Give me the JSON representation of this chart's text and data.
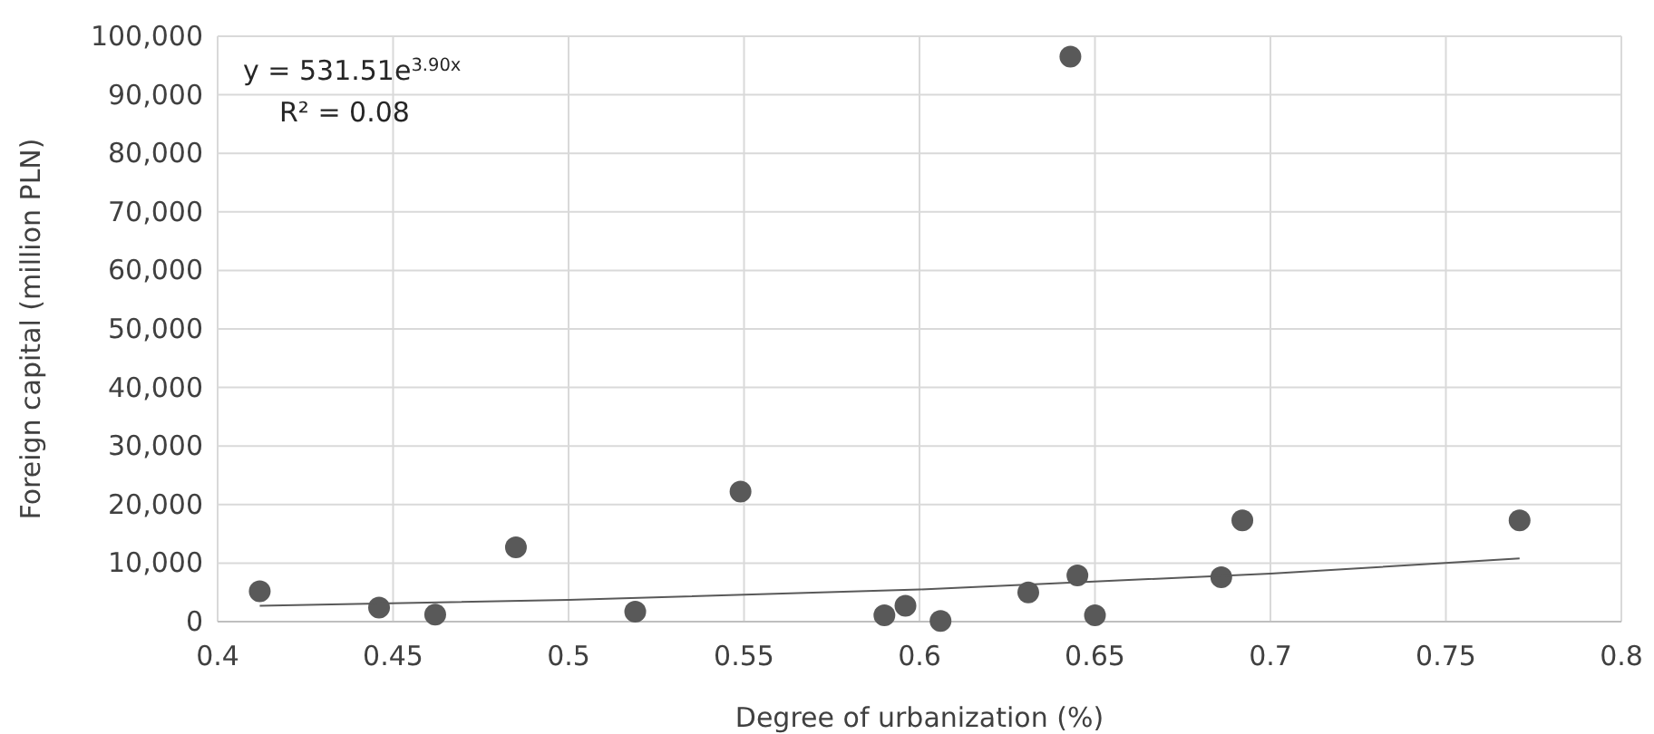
{
  "chart_data": {
    "type": "scatter",
    "xlabel": "Degree of urbanization (%)",
    "ylabel": "Foreign capital (million PLN)",
    "xlim": [
      0.4,
      0.8
    ],
    "xticks": [
      0.4,
      0.45,
      0.5,
      0.55,
      0.6,
      0.65,
      0.7,
      0.75,
      0.8
    ],
    "ylim": [
      0,
      100000
    ],
    "yticks": [
      {
        "value": 0,
        "label": "0"
      },
      {
        "value": 10000,
        "label": "10,000"
      },
      {
        "value": 20000,
        "label": "20,000"
      },
      {
        "value": 30000,
        "label": "30,000"
      },
      {
        "value": 40000,
        "label": "40,000"
      },
      {
        "value": 50000,
        "label": "50,000"
      },
      {
        "value": 60000,
        "label": "60,000"
      },
      {
        "value": 70000,
        "label": "70,000"
      },
      {
        "value": 80000,
        "label": "80,000"
      },
      {
        "value": 90000,
        "label": "90,000"
      },
      {
        "value": 100000,
        "label": "100,000"
      }
    ],
    "grid": true,
    "annotations": [
      "y = 531.51e$^{3.90x}$",
      "R² = 0.08"
    ],
    "series": [
      {
        "color": "#595959",
        "marker": "circle",
        "x": [
          0.412,
          0.446,
          0.462,
          0.485,
          0.519,
          0.549,
          0.59,
          0.596,
          0.606,
          0.631,
          0.643,
          0.645,
          0.65,
          0.686,
          0.692,
          0.771
        ],
        "values": [
          5200,
          2400,
          1200,
          12700,
          1700,
          22200,
          1100,
          2700,
          100,
          5000,
          96500,
          7900,
          1100,
          7600,
          17300,
          17300
        ]
      },
      {
        "type": "line",
        "color": "#595959",
        "line_style": "solid",
        "marker": "none",
        "x": [
          0.412,
          0.5,
          0.6,
          0.7,
          0.771
        ],
        "values": [
          2700,
          3700,
          5500,
          8200,
          10800
        ]
      }
    ]
  }
}
